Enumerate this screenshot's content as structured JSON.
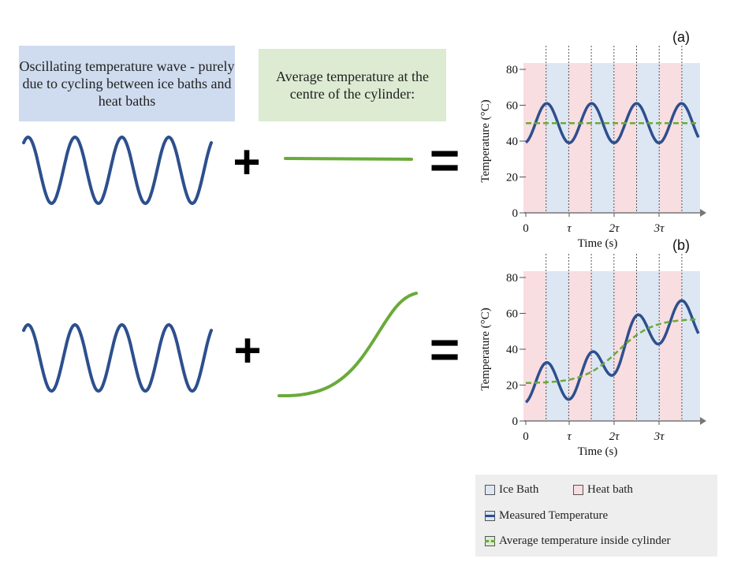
{
  "top_row": {
    "wave_box_text": "Oscillating temperature wave - purely due to cycling between ice baths and heat baths",
    "avg_box_text": "Average temperature at the centre of the cylinder:"
  },
  "symbols": {
    "plus": "+",
    "equals": "="
  },
  "colors": {
    "wave_blue": "#2d4f8e",
    "avg_green": "#6aaa3a",
    "ice_bath": "#dde6f3",
    "heat_bath": "#f8dde1",
    "wave_box_bg": "#cfdcef",
    "avg_box_bg": "#dcebd2"
  },
  "chart_data": [
    {
      "panel": "(a)",
      "type": "line",
      "xlabel": "Time (s)",
      "ylabel": "Temperature (°C)",
      "yticks": [
        "0",
        "20",
        "40",
        "60",
        "80"
      ],
      "xticks": [
        "0",
        "τ",
        "2τ",
        "3τ"
      ],
      "ylim": [
        0,
        80
      ],
      "series": [
        {
          "name": "Measured Temperature",
          "shape": "oscillation about constant 50, amplitude ~11, period τ"
        },
        {
          "name": "Average temperature inside cylinder",
          "constant": 50
        }
      ]
    },
    {
      "panel": "(b)",
      "type": "line",
      "xlabel": "Time (s)",
      "ylabel": "Temperature (°C)",
      "yticks": [
        "0",
        "20",
        "40",
        "60",
        "80"
      ],
      "xticks": [
        "0",
        "τ",
        "2τ",
        "3τ"
      ],
      "ylim": [
        0,
        80
      ],
      "series": [
        {
          "name": "Measured Temperature",
          "shape": "oscillation about rising sigmoid, amplitude ~11, period τ"
        },
        {
          "name": "Average temperature inside cylinder",
          "start": 21,
          "end": 57,
          "shape": "sigmoid"
        }
      ]
    }
  ],
  "legend": {
    "ice": "Ice Bath",
    "heat": "Heat bath",
    "measured": "Measured Temperature",
    "average": "Average temperature inside cylinder"
  }
}
